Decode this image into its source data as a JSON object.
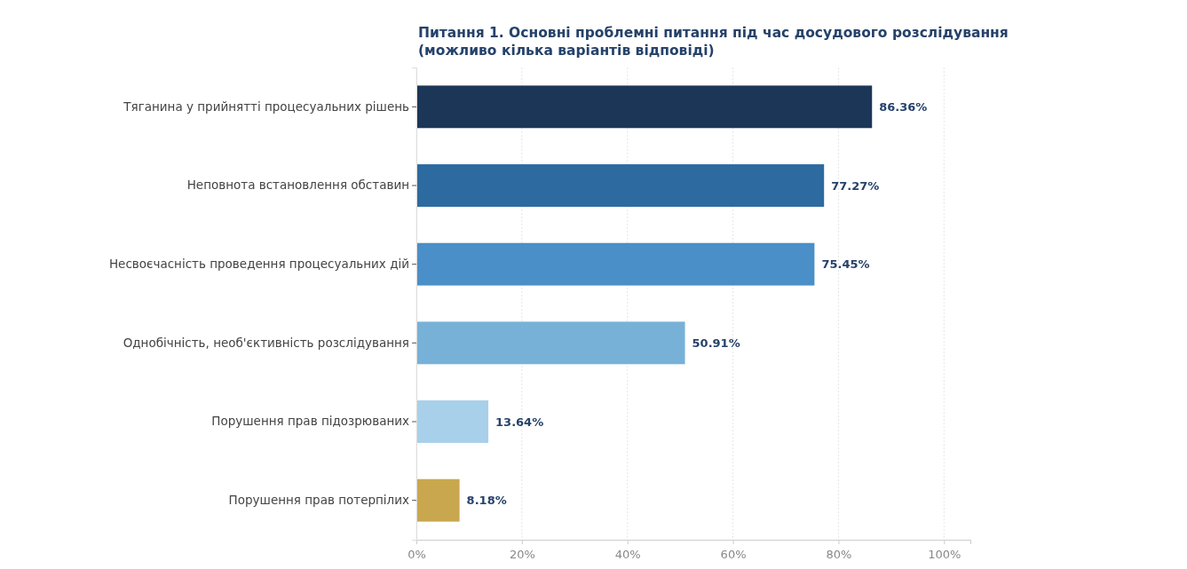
{
  "chart_data": {
    "type": "bar",
    "orientation": "horizontal",
    "title": "Питання 1. Основні проблемні питання під час досудового розслідування\n(можливо кілька варіантів відповіді)",
    "categories": [
      "Тяганина у прийнятті процесуальних рішень",
      "Неповнота встановлення обставин",
      "Несвоєчасність проведення процесуальних дій",
      "Однобічність, необ'єктивність розслідування",
      "Порушення прав підозрюваних",
      "Порушення прав потерпілих"
    ],
    "values": [
      86.36,
      77.27,
      75.45,
      50.91,
      13.64,
      8.18
    ],
    "colors": [
      "#1c3657",
      "#2c6aa0",
      "#4a8fc7",
      "#77b1d8",
      "#a8d0ea",
      "#c9a74e"
    ],
    "value_labels": [
      "86.36%",
      "77.27%",
      "75.45%",
      "50.91%",
      "13.64%",
      "8.18%"
    ],
    "xlim": [
      0,
      105
    ],
    "xticks": [
      {
        "value": 0,
        "label": "0%"
      },
      {
        "value": 20,
        "label": "20%"
      },
      {
        "value": 40,
        "label": "40%"
      },
      {
        "value": 60,
        "label": "60%"
      },
      {
        "value": 80,
        "label": "80%"
      },
      {
        "value": 100,
        "label": "100%"
      }
    ],
    "grid": "x"
  }
}
